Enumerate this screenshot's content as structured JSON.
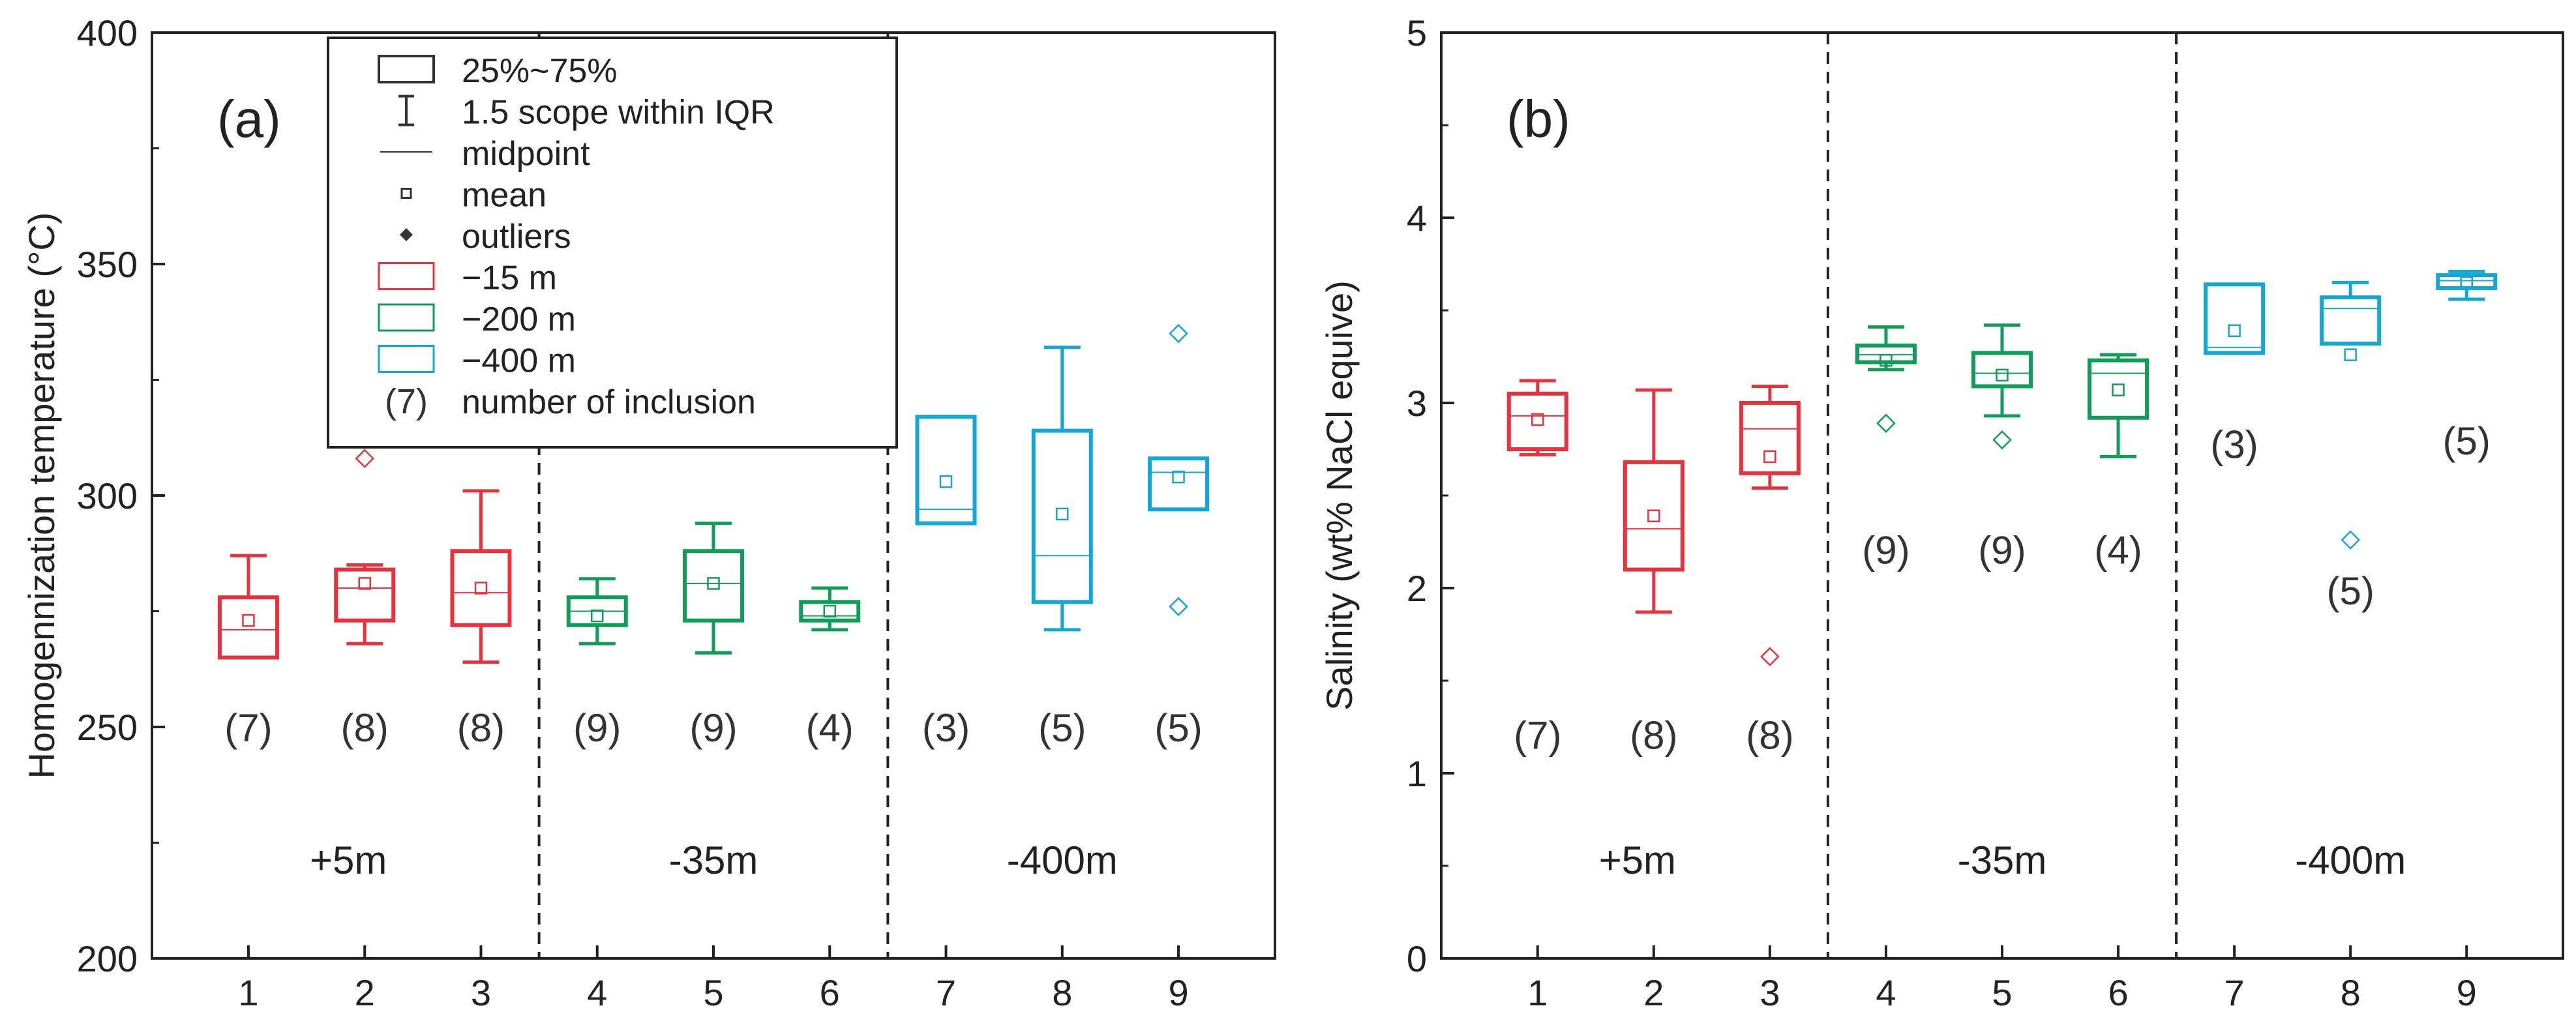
{
  "chart_data": [
    {
      "type": "box",
      "panel_label": "(a)",
      "ylabel": "Homogennization temperature (°C)",
      "ylim": [
        200,
        400
      ],
      "yticks": [
        200,
        250,
        300,
        350,
        400
      ],
      "categories": [
        "1",
        "2",
        "3",
        "4",
        "5",
        "6",
        "7",
        "8",
        "9"
      ],
      "group_dividers": [
        3.5,
        6.5
      ],
      "sections": [
        "+5m",
        "-35m",
        "-400m"
      ],
      "boxes": [
        {
          "x": 1,
          "q1": 265,
          "median": 271,
          "q3": 278,
          "whisker_low": 265,
          "whisker_high": 287,
          "mean": 273,
          "outliers": [],
          "n": "(7)",
          "series": "-15 m"
        },
        {
          "x": 2,
          "q1": 273,
          "median": 280,
          "q3": 284,
          "whisker_low": 268,
          "whisker_high": 285,
          "mean": 281,
          "outliers": [
            308
          ],
          "n": "(8)",
          "series": "-15 m"
        },
        {
          "x": 3,
          "q1": 272,
          "median": 279,
          "q3": 288,
          "whisker_low": 264,
          "whisker_high": 301,
          "mean": 280,
          "outliers": [],
          "n": "(8)",
          "series": "-15 m"
        },
        {
          "x": 4,
          "q1": 272,
          "median": 275,
          "q3": 278,
          "whisker_low": 268,
          "whisker_high": 282,
          "mean": 274,
          "outliers": [],
          "n": "(9)",
          "series": "-200 m"
        },
        {
          "x": 5,
          "q1": 273,
          "median": 281,
          "q3": 288,
          "whisker_low": 266,
          "whisker_high": 294,
          "mean": 281,
          "outliers": [],
          "n": "(9)",
          "series": "-200 m"
        },
        {
          "x": 6,
          "q1": 273,
          "median": 274,
          "q3": 277,
          "whisker_low": 271,
          "whisker_high": 280,
          "mean": 275,
          "outliers": [],
          "n": "(4)",
          "series": "-200 m"
        },
        {
          "x": 7,
          "q1": 294,
          "median": 297,
          "q3": 317,
          "whisker_low": 294,
          "whisker_high": 317,
          "mean": 303,
          "outliers": [],
          "n": "(3)",
          "series": "-400 m"
        },
        {
          "x": 8,
          "q1": 277,
          "median": 287,
          "q3": 314,
          "whisker_low": 271,
          "whisker_high": 332,
          "mean": 296,
          "outliers": [],
          "n": "(5)",
          "series": "-400 m"
        },
        {
          "x": 9,
          "q1": 297,
          "median": 305,
          "q3": 308,
          "whisker_low": 297,
          "whisker_high": 308,
          "mean": 304,
          "outliers": [
            335,
            276
          ],
          "n": "(5)",
          "series": "-400 m"
        }
      ],
      "legend": {
        "items": [
          {
            "symbol": "box",
            "label": "25%~75%"
          },
          {
            "symbol": "whisker",
            "label": "1.5 scope within IQR"
          },
          {
            "symbol": "line",
            "label": "midpoint"
          },
          {
            "symbol": "square",
            "label": "mean"
          },
          {
            "symbol": "diamond",
            "label": "outliers"
          },
          {
            "symbol": "colorbox",
            "series": "-15 m",
            "label": "−15 m"
          },
          {
            "symbol": "colorbox",
            "series": "-200 m",
            "label": "−200 m"
          },
          {
            "symbol": "colorbox",
            "series": "-400 m",
            "label": "−400 m"
          },
          {
            "symbol": "text",
            "symbol_text": "(7)",
            "label": "number of inclusion"
          }
        ]
      }
    },
    {
      "type": "box",
      "panel_label": "(b)",
      "ylabel": "Salinity (wt% NaCl equive)",
      "ylim": [
        0,
        5
      ],
      "yticks": [
        0,
        1,
        2,
        3,
        4,
        5
      ],
      "categories": [
        "1",
        "2",
        "3",
        "4",
        "5",
        "6",
        "7",
        "8",
        "9"
      ],
      "group_dividers": [
        3.5,
        6.5
      ],
      "sections": [
        "+5m",
        "-35m",
        "-400m"
      ],
      "boxes": [
        {
          "x": 1,
          "q1": 2.75,
          "median": 2.93,
          "q3": 3.05,
          "whisker_low": 2.72,
          "whisker_high": 3.12,
          "mean": 2.91,
          "outliers": [],
          "n": "(7)",
          "series": "-15 m"
        },
        {
          "x": 2,
          "q1": 2.1,
          "median": 2.32,
          "q3": 2.68,
          "whisker_low": 1.87,
          "whisker_high": 3.07,
          "mean": 2.39,
          "outliers": [],
          "n": "(8)",
          "series": "-15 m"
        },
        {
          "x": 3,
          "q1": 2.62,
          "median": 2.86,
          "q3": 3.0,
          "whisker_low": 2.54,
          "whisker_high": 3.09,
          "mean": 2.71,
          "outliers": [
            1.63
          ],
          "n": "(8)",
          "series": "-15 m"
        },
        {
          "x": 4,
          "q1": 3.22,
          "median": 3.26,
          "q3": 3.31,
          "whisker_low": 3.18,
          "whisker_high": 3.41,
          "mean": 3.23,
          "outliers": [
            2.89
          ],
          "n": "(9)",
          "series": "-200 m"
        },
        {
          "x": 5,
          "q1": 3.09,
          "median": 3.16,
          "q3": 3.27,
          "whisker_low": 2.93,
          "whisker_high": 3.42,
          "mean": 3.15,
          "outliers": [
            2.8
          ],
          "n": "(9)",
          "series": "-200 m"
        },
        {
          "x": 6,
          "q1": 2.92,
          "median": 3.16,
          "q3": 3.23,
          "whisker_low": 2.71,
          "whisker_high": 3.26,
          "mean": 3.07,
          "outliers": [],
          "n": "(4)",
          "series": "-200 m"
        },
        {
          "x": 7,
          "q1": 3.27,
          "median": 3.3,
          "q3": 3.64,
          "whisker_low": 3.27,
          "whisker_high": 3.64,
          "mean": 3.39,
          "outliers": [],
          "n": "(3)",
          "series": "-400 m"
        },
        {
          "x": 8,
          "q1": 3.32,
          "median": 3.51,
          "q3": 3.57,
          "whisker_low": 3.32,
          "whisker_high": 3.65,
          "mean": 3.26,
          "outliers": [
            2.26
          ],
          "n": "(5)",
          "series": "-400 m"
        },
        {
          "x": 9,
          "q1": 3.62,
          "median": 3.66,
          "q3": 3.69,
          "whisker_low": 3.56,
          "whisker_high": 3.71,
          "mean": 3.65,
          "outliers": [],
          "n": "(5)",
          "series": "-400 m"
        }
      ]
    }
  ],
  "colors": {
    "-15 m": "#e8333e",
    "-200 m": "#0f9d58",
    "-400 m": "#12a7d4",
    "axis": "#222222",
    "legend_symbol": "#333333",
    "n_text": "#333333"
  }
}
